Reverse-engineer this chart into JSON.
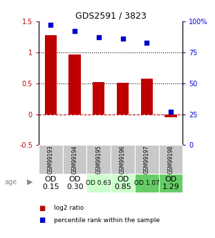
{
  "title": "GDS2591 / 3823",
  "samples": [
    "GSM99193",
    "GSM99194",
    "GSM99195",
    "GSM99196",
    "GSM99197",
    "GSM99198"
  ],
  "log2_ratio": [
    1.28,
    0.97,
    0.52,
    0.51,
    0.58,
    -0.05
  ],
  "percentile_rank": [
    97,
    92,
    87,
    86,
    83,
    27
  ],
  "bar_color": "#c00000",
  "dot_color": "#0000cc",
  "ylim_left": [
    -0.5,
    1.5
  ],
  "ylim_right": [
    0,
    100
  ],
  "yticks_left": [
    -0.5,
    0,
    0.5,
    1.0,
    1.5
  ],
  "yticks_right": [
    0,
    25,
    50,
    75,
    100
  ],
  "ytick_labels_left": [
    "-0.5",
    "0",
    "0.5",
    "1",
    "1.5"
  ],
  "ytick_labels_right": [
    "0",
    "25",
    "50",
    "75",
    "100%"
  ],
  "hline_y": [
    0.5,
    1.0
  ],
  "zero_line_y": 0,
  "age_labels": [
    "OD\n0.15",
    "OD\n0.30",
    "OD 0.63",
    "OD\n0.85",
    "OD 1.07",
    "OD\n1.29"
  ],
  "age_bg_colors": [
    "#ffffff",
    "#ffffff",
    "#ccffcc",
    "#ccffcc",
    "#66cc66",
    "#66cc66"
  ],
  "age_font_sizes": [
    8,
    8,
    6.5,
    8,
    6.5,
    8
  ],
  "sample_bg_color": "#c8c8c8",
  "legend_red_label": "log2 ratio",
  "legend_blue_label": "percentile rank within the sample",
  "background_color": "#ffffff",
  "age_label_color": "#888888",
  "bar_width": 0.5
}
